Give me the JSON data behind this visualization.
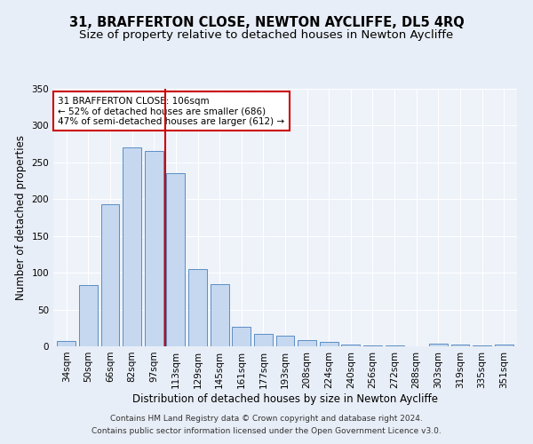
{
  "title": "31, BRAFFERTON CLOSE, NEWTON AYCLIFFE, DL5 4RQ",
  "subtitle": "Size of property relative to detached houses in Newton Aycliffe",
  "xlabel": "Distribution of detached houses by size in Newton Aycliffe",
  "ylabel": "Number of detached properties",
  "categories": [
    "34sqm",
    "50sqm",
    "66sqm",
    "82sqm",
    "97sqm",
    "113sqm",
    "129sqm",
    "145sqm",
    "161sqm",
    "177sqm",
    "193sqm",
    "208sqm",
    "224sqm",
    "240sqm",
    "256sqm",
    "272sqm",
    "288sqm",
    "303sqm",
    "319sqm",
    "335sqm",
    "351sqm"
  ],
  "values": [
    7,
    83,
    193,
    270,
    265,
    235,
    105,
    85,
    27,
    17,
    14,
    9,
    6,
    3,
    1,
    1,
    0,
    4,
    2,
    1,
    2
  ],
  "bar_color": "#c5d8f0",
  "bar_edge_color": "#5b8ec4",
  "vline_x": 4.5,
  "vline_color": "#cc0000",
  "annotation_text": "31 BRAFFERTON CLOSE: 106sqm\n← 52% of detached houses are smaller (686)\n47% of semi-detached houses are larger (612) →",
  "annotation_box_color": "#ffffff",
  "annotation_box_edge": "#cc0000",
  "ylim": [
    0,
    350
  ],
  "yticks": [
    0,
    50,
    100,
    150,
    200,
    250,
    300,
    350
  ],
  "footer1": "Contains HM Land Registry data © Crown copyright and database right 2024.",
  "footer2": "Contains public sector information licensed under the Open Government Licence v3.0.",
  "bg_color": "#e8eef7",
  "plot_bg_color": "#eef2f9",
  "title_fontsize": 10.5,
  "subtitle_fontsize": 9.5,
  "axis_label_fontsize": 8.5,
  "tick_fontsize": 7.5,
  "footer_fontsize": 6.5
}
